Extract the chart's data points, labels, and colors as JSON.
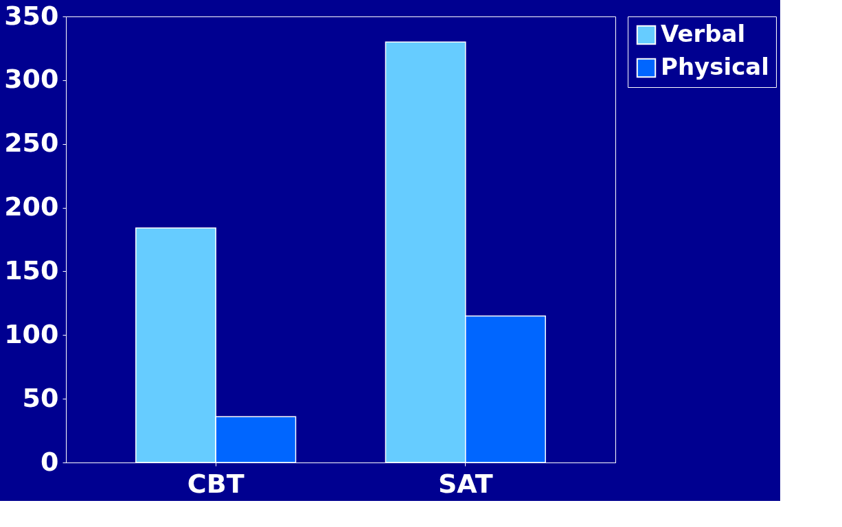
{
  "chart_data": {
    "type": "bar",
    "categories": [
      "CBT",
      "SAT"
    ],
    "series": [
      {
        "name": "Verbal",
        "color": "#66ccff",
        "values": [
          184,
          330
        ]
      },
      {
        "name": "Physical",
        "color": "#0066ff",
        "values": [
          36,
          115
        ]
      }
    ],
    "ylim": [
      0,
      350
    ],
    "yticks": [
      0,
      50,
      100,
      150,
      200,
      250,
      300,
      350
    ],
    "grid": false,
    "legend": "right"
  }
}
